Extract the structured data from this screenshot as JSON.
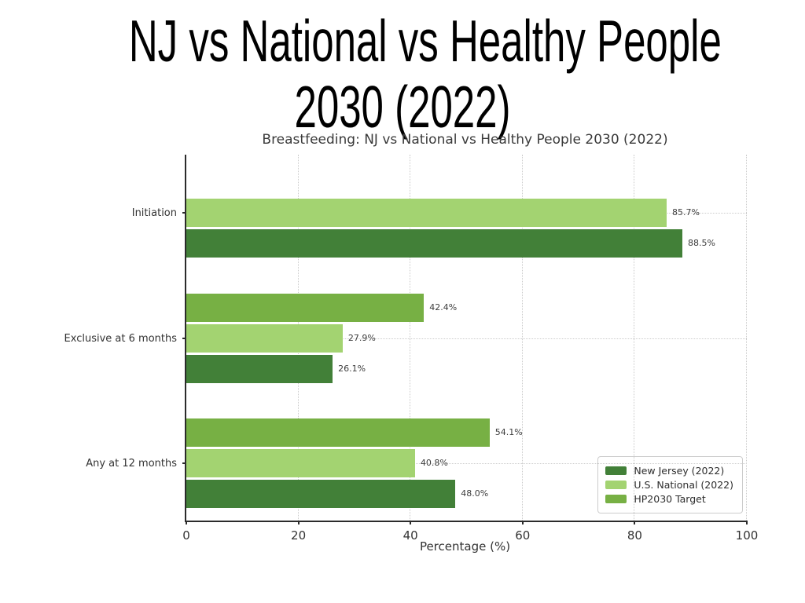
{
  "slide": {
    "title_lines": [
      "NJ vs National vs Healthy People",
      "2030 (2022)"
    ]
  },
  "chart_data": {
    "type": "bar",
    "orientation": "horizontal",
    "title": "Breastfeeding: NJ vs National vs Healthy People 2030 (2022)",
    "categories": [
      "Initiation",
      "Exclusive at 6 months",
      "Any at 12 months"
    ],
    "series": [
      {
        "name": "New Jersey (2022)",
        "color": "#428038",
        "values": [
          88.5,
          26.1,
          48.0
        ]
      },
      {
        "name": "U.S. National (2022)",
        "color": "#A3D371",
        "values": [
          85.7,
          27.9,
          40.8
        ]
      },
      {
        "name": "HP2030 Target",
        "color": "#77B044",
        "values": [
          null,
          42.4,
          54.1
        ]
      }
    ],
    "bar_order_top_to_bottom": [
      "HP2030 Target",
      "U.S. National (2022)",
      "New Jersey (2022)"
    ],
    "value_label_format": "{value}%",
    "xlabel": "Percentage (%)",
    "xticks": [
      0,
      20,
      40,
      60,
      80,
      100
    ],
    "xlim": [
      0,
      100
    ],
    "grid": "dotted",
    "legend_position": "lower right",
    "colors": {
      "spine": "#2b2b2b",
      "gridline": "#cbcbcb",
      "chart_text": "#3a3a3a",
      "value_label_text": "#3c3c3c"
    }
  }
}
